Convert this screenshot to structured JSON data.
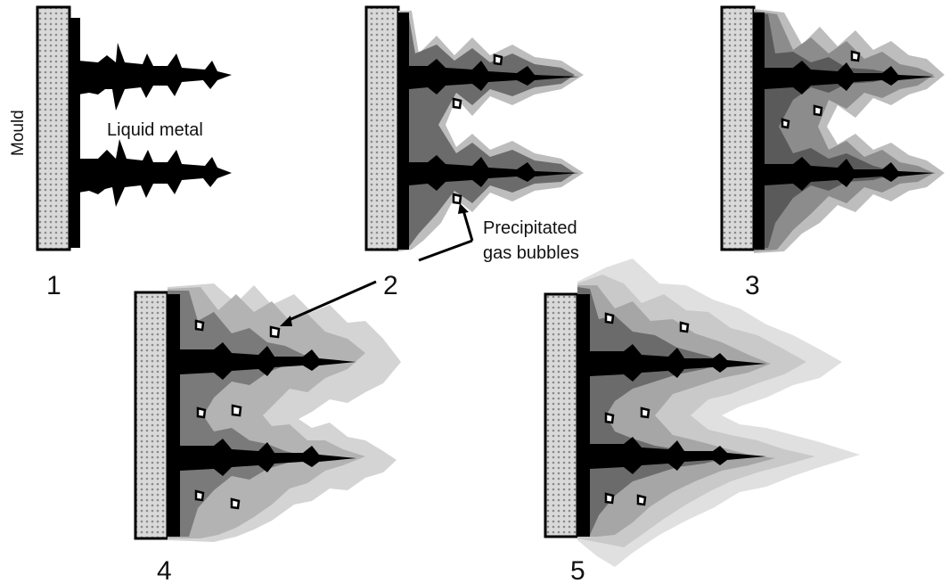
{
  "labels": {
    "mould": "Mould",
    "liquid_metal": "Liquid metal",
    "bubbles_line1": "Precipitated",
    "bubbles_line2": "gas bubbles"
  },
  "steps": [
    "1",
    "2",
    "3",
    "4",
    "5"
  ],
  "colors": {
    "mould_fill": "#d9d9d9",
    "mould_pattern": "#8a8a8a",
    "solid_black": "#000000",
    "shell_dark": "#4d4d4d",
    "shell_mid": "#8c8c8c",
    "shell_light": "#bdbdbd",
    "shell_lighter": "#d9d9d9",
    "background": "#ffffff"
  }
}
